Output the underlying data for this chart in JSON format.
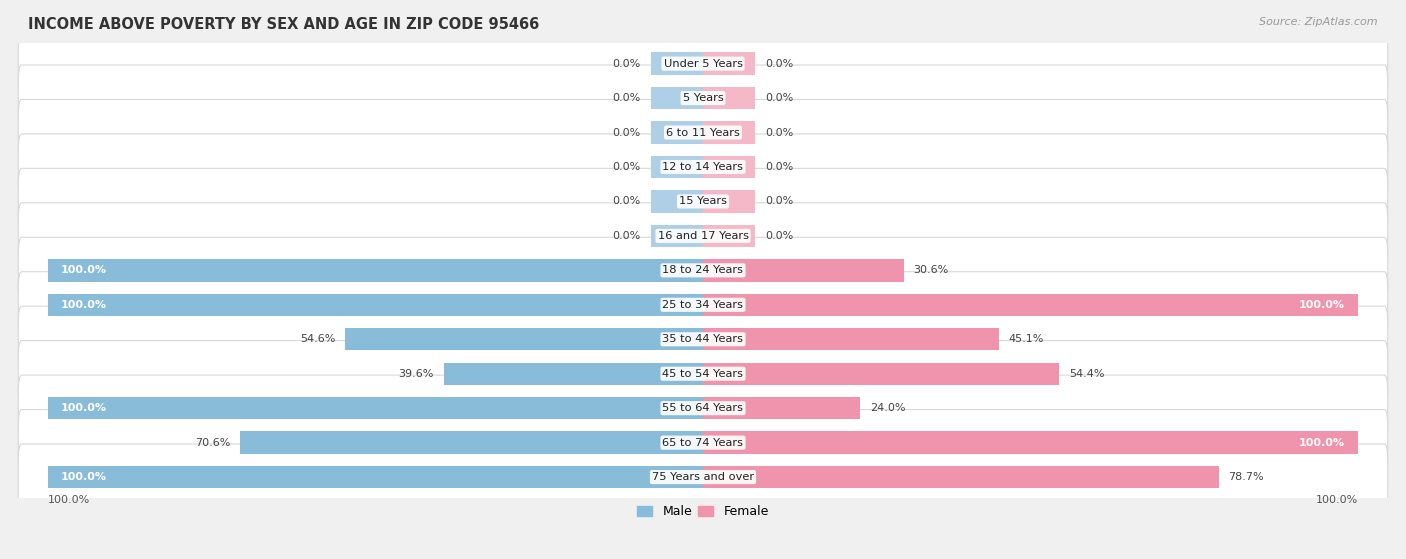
{
  "title": "INCOME ABOVE POVERTY BY SEX AND AGE IN ZIP CODE 95466",
  "source": "Source: ZipAtlas.com",
  "categories": [
    "Under 5 Years",
    "5 Years",
    "6 to 11 Years",
    "12 to 14 Years",
    "15 Years",
    "16 and 17 Years",
    "18 to 24 Years",
    "25 to 34 Years",
    "35 to 44 Years",
    "45 to 54 Years",
    "55 to 64 Years",
    "65 to 74 Years",
    "75 Years and over"
  ],
  "male": [
    0.0,
    0.0,
    0.0,
    0.0,
    0.0,
    0.0,
    100.0,
    100.0,
    54.6,
    39.6,
    100.0,
    70.6,
    100.0
  ],
  "female": [
    0.0,
    0.0,
    0.0,
    0.0,
    0.0,
    0.0,
    30.6,
    100.0,
    45.1,
    54.4,
    24.0,
    100.0,
    78.7
  ],
  "male_color": "#89bcd8",
  "female_color": "#f093ad",
  "male_color_light": "#aecfe6",
  "female_color_light": "#f4b8c8",
  "bg_color": "#f0f0f0",
  "row_bg": "#ffffff",
  "row_border": "#d8d8d8",
  "x_max": 100.0,
  "stub_size": 8.0,
  "legend_male": "Male",
  "legend_female": "Female"
}
